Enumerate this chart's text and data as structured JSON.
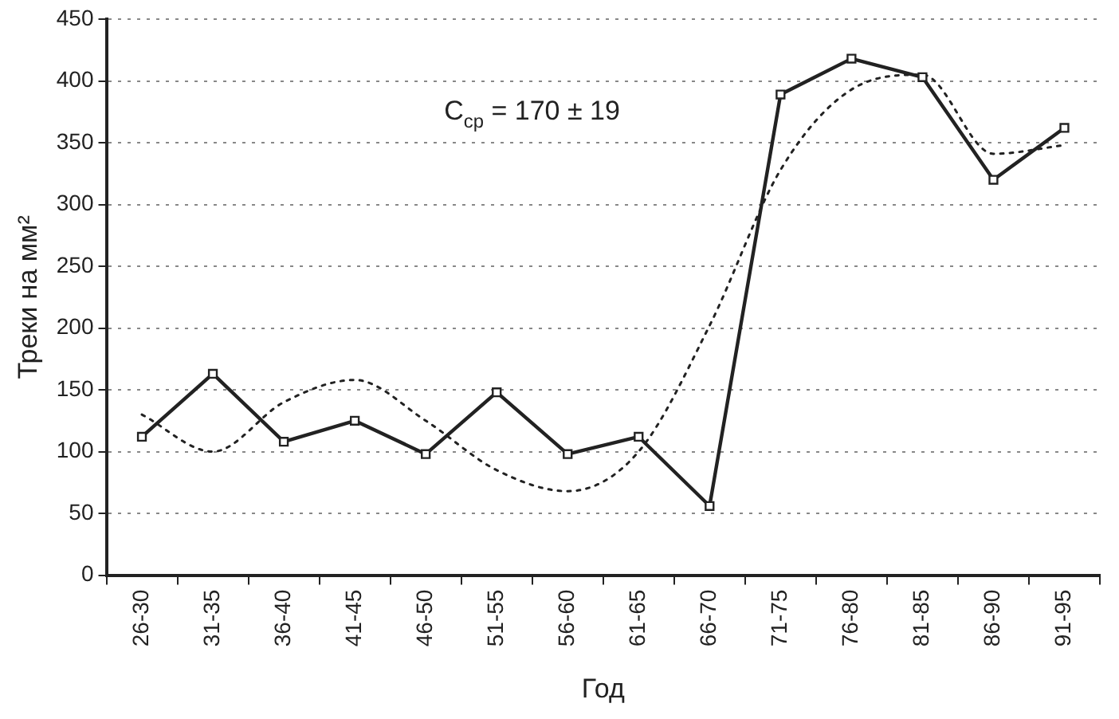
{
  "chart_data": {
    "type": "line",
    "xlabel": "Год",
    "ylabel": "Треки на мм²",
    "categories": [
      "26-30",
      "31-35",
      "36-40",
      "41-45",
      "46-50",
      "51-55",
      "56-60",
      "61-65",
      "66-70",
      "71-75",
      "76-80",
      "81-85",
      "86-90",
      "91-95"
    ],
    "series": [
      {
        "color": "#222222",
        "values": [
          112,
          163,
          108,
          125,
          98,
          148,
          98,
          112,
          56,
          389,
          418,
          403,
          320,
          362
        ],
        "marker": "square",
        "line_style": "solid"
      },
      {
        "color": "#222222",
        "values": [
          130,
          100,
          140,
          158,
          125,
          85,
          68,
          100,
          202,
          328,
          393,
          405,
          341,
          348
        ],
        "marker": "none",
        "line_style": "dotted"
      }
    ],
    "ylim": [
      0,
      450
    ],
    "yticks": [
      0,
      50,
      100,
      150,
      200,
      250,
      300,
      350,
      400,
      450
    ],
    "grid": "y",
    "legend": false,
    "annotations": [
      "C$_{ср}$ = 170 ± 19"
    ]
  }
}
